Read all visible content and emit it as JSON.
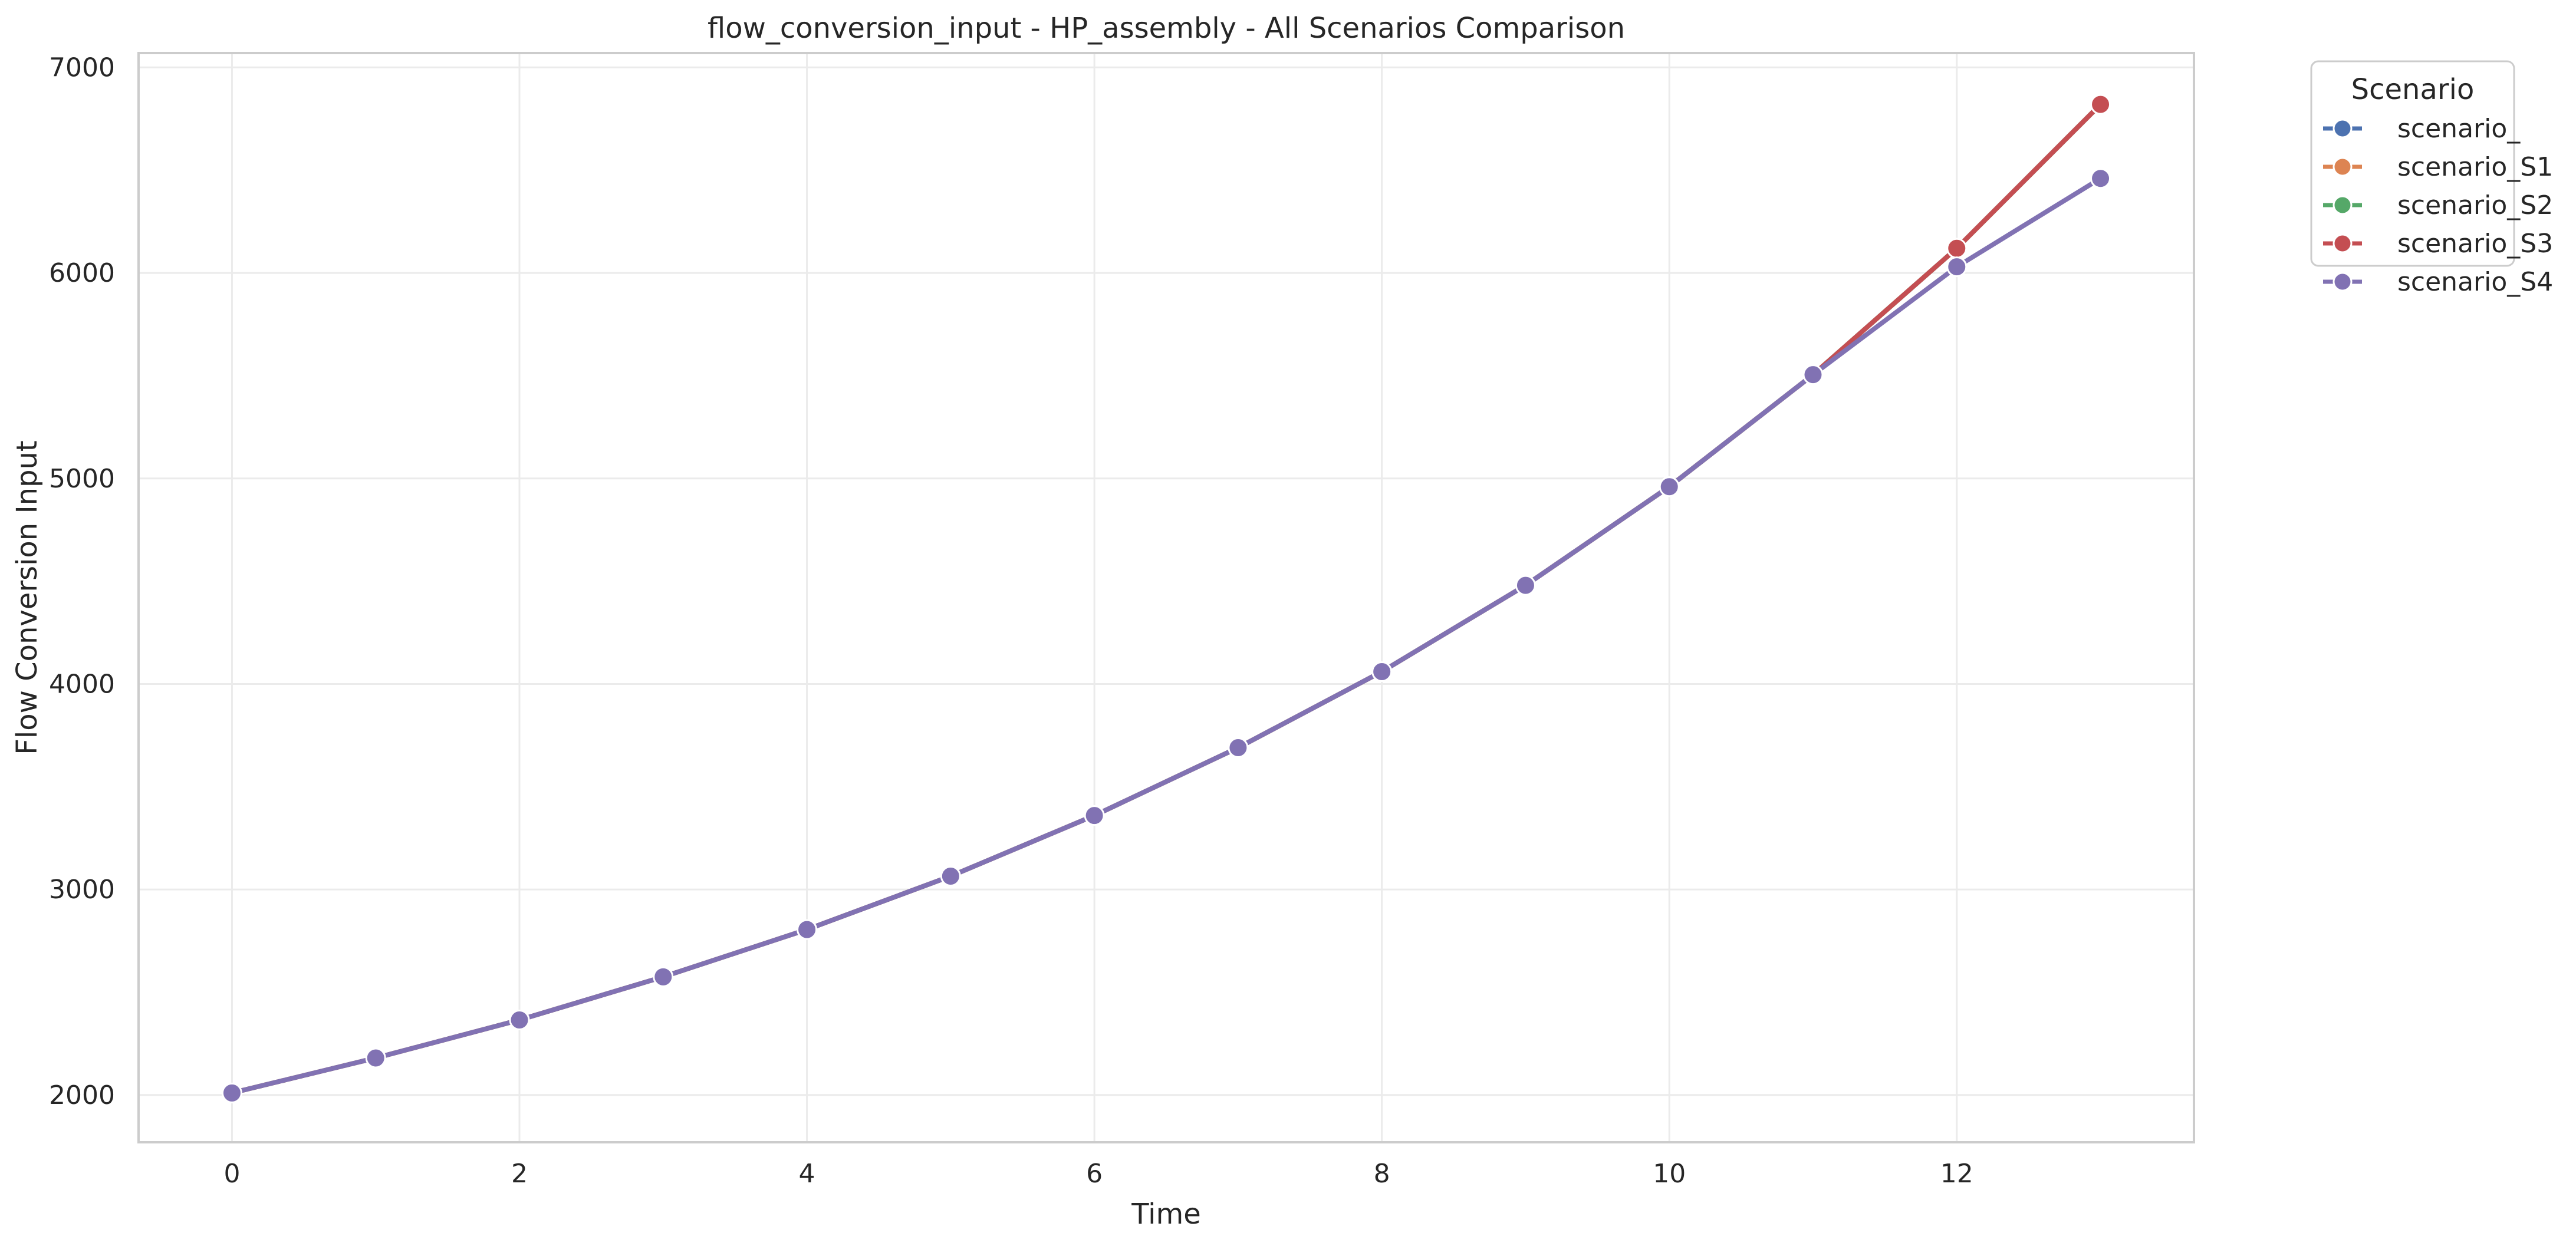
{
  "chart_data": {
    "type": "line",
    "title": "flow_conversion_input - HP_assembly - All Scenarios Comparison",
    "xlabel": "Time",
    "ylabel": "Flow Conversion Input",
    "xlim": [
      -0.65,
      13.65
    ],
    "ylim": [
      1770,
      7070
    ],
    "xticks": [
      0,
      2,
      4,
      6,
      8,
      10,
      12
    ],
    "yticks": [
      2000,
      3000,
      4000,
      5000,
      6000,
      7000
    ],
    "grid": true,
    "legend": {
      "title": "Scenario",
      "placement": "outside-top-right"
    },
    "x": [
      0,
      1,
      2,
      3,
      4,
      5,
      6,
      7,
      8,
      9,
      10,
      11,
      12,
      13
    ],
    "series": [
      {
        "name": "scenario_",
        "color": "#4c72b0",
        "values": [
          2010,
          2180,
          2365,
          2575,
          2805,
          3065,
          3360,
          3690,
          4060,
          4480,
          4960,
          5505,
          6120,
          6820
        ]
      },
      {
        "name": "scenario_S1",
        "color": "#dd8452",
        "values": [
          2010,
          2180,
          2365,
          2575,
          2805,
          3065,
          3360,
          3690,
          4060,
          4480,
          4960,
          5505,
          6120,
          6820
        ]
      },
      {
        "name": "scenario_S2",
        "color": "#55a868",
        "values": [
          2010,
          2180,
          2365,
          2575,
          2805,
          3065,
          3360,
          3690,
          4060,
          4480,
          4960,
          5505,
          6120,
          6820
        ]
      },
      {
        "name": "scenario_S3",
        "color": "#c44e52",
        "values": [
          2010,
          2180,
          2365,
          2575,
          2805,
          3065,
          3360,
          3690,
          4060,
          4480,
          4960,
          5505,
          6120,
          6820
        ]
      },
      {
        "name": "scenario_S4",
        "color": "#8172b3",
        "values": [
          2010,
          2180,
          2365,
          2575,
          2805,
          3065,
          3360,
          3690,
          4060,
          4480,
          4960,
          5505,
          6030,
          6460
        ]
      }
    ]
  }
}
